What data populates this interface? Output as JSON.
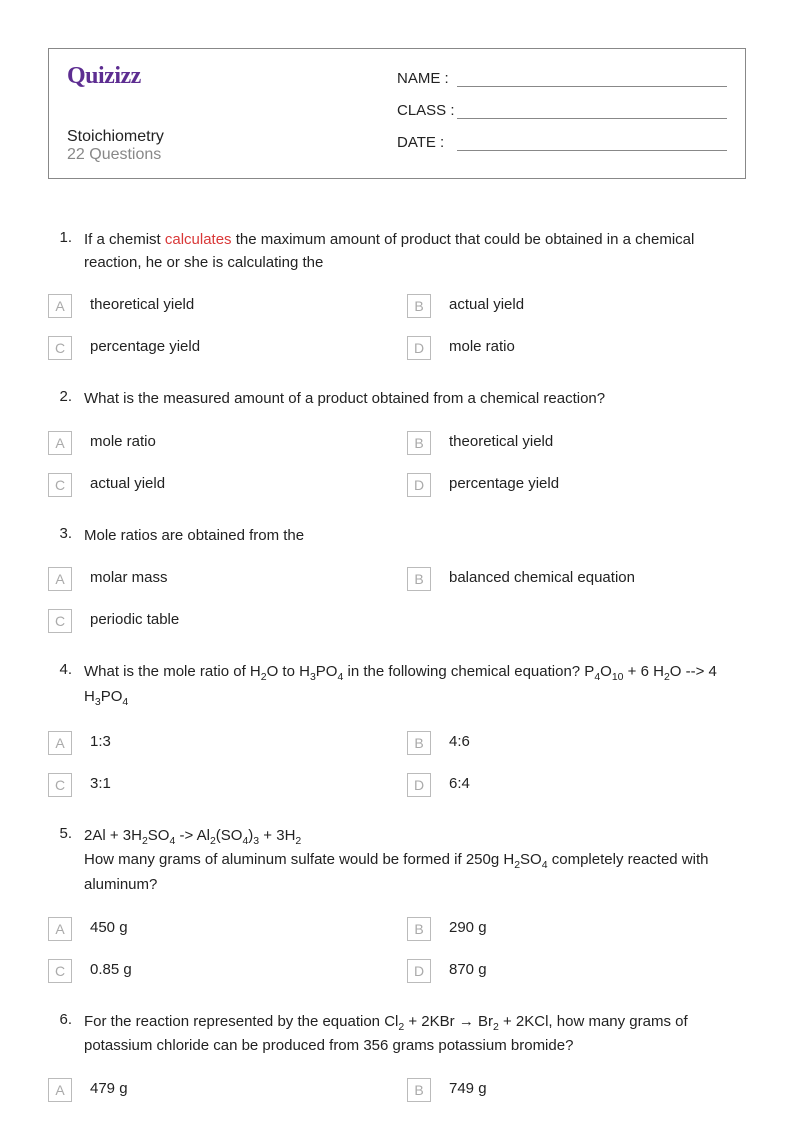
{
  "header": {
    "logo": "Quizizz",
    "title": "Stoichiometry",
    "count": "22 Questions",
    "name_label": "NAME :",
    "class_label": "CLASS :",
    "date_label": "DATE  :"
  },
  "questions": [
    {
      "num": "1.",
      "pre": "If a chemist ",
      "highlight": "calculates",
      "post": " the maximum amount of product that could be obtained in a chemical reaction, he or she is calculating the",
      "opts": [
        {
          "l": "A",
          "t": "theoretical yield"
        },
        {
          "l": "B",
          "t": "actual yield"
        },
        {
          "l": "C",
          "t": "percentage yield"
        },
        {
          "l": "D",
          "t": "mole ratio"
        }
      ]
    },
    {
      "num": "2.",
      "text": "What is the measured amount of a product obtained from a chemical reaction?",
      "opts": [
        {
          "l": "A",
          "t": "mole ratio"
        },
        {
          "l": "B",
          "t": "theoretical yield"
        },
        {
          "l": "C",
          "t": "actual yield"
        },
        {
          "l": "D",
          "t": "percentage yield"
        }
      ]
    },
    {
      "num": "3.",
      "text": "Mole ratios are obtained from the",
      "opts": [
        {
          "l": "A",
          "t": "molar mass"
        },
        {
          "l": "B",
          "t": "balanced chemical equation"
        },
        {
          "l": "C",
          "t": "periodic table"
        }
      ]
    },
    {
      "num": "4.",
      "html": "What is the mole ratio of H<sub>2</sub>O to H<sub>3</sub>PO<sub>4</sub> in the following chemical equation?   P<sub>4</sub>O<sub>10</sub> + 6 H<sub>2</sub>O --> 4 H<sub>3</sub>PO<sub>4</sub>",
      "opts": [
        {
          "l": "A",
          "t": "1:3"
        },
        {
          "l": "B",
          "t": "4:6"
        },
        {
          "l": "C",
          "t": "3:1"
        },
        {
          "l": "D",
          "t": "6:4"
        }
      ]
    },
    {
      "num": "5.",
      "html": "2Al + 3H<sub>2</sub>SO<sub>4</sub> -> Al<sub>2</sub>(SO<sub>4</sub>)<sub>3</sub> + 3H<sub>2</sub><br>How many grams of aluminum sulfate would be formed if 250g H<sub>2</sub>SO<sub>4</sub> completely reacted with aluminum?",
      "opts": [
        {
          "l": "A",
          "t": "450 g"
        },
        {
          "l": "B",
          "t": "290 g"
        },
        {
          "l": "C",
          "t": "0.85 g"
        },
        {
          "l": "D",
          "t": "870 g"
        }
      ]
    },
    {
      "num": "6.",
      "html": "For the reaction represented by the equation Cl<sub>2</sub> + 2KBr → Br<sub>2</sub> + 2KCl, how many grams of potassium chloride can be produced from 356 grams potassium bromide?",
      "opts": [
        {
          "l": "A",
          "t": "479 g"
        },
        {
          "l": "B",
          "t": "749 g"
        }
      ],
      "partial": true
    }
  ]
}
